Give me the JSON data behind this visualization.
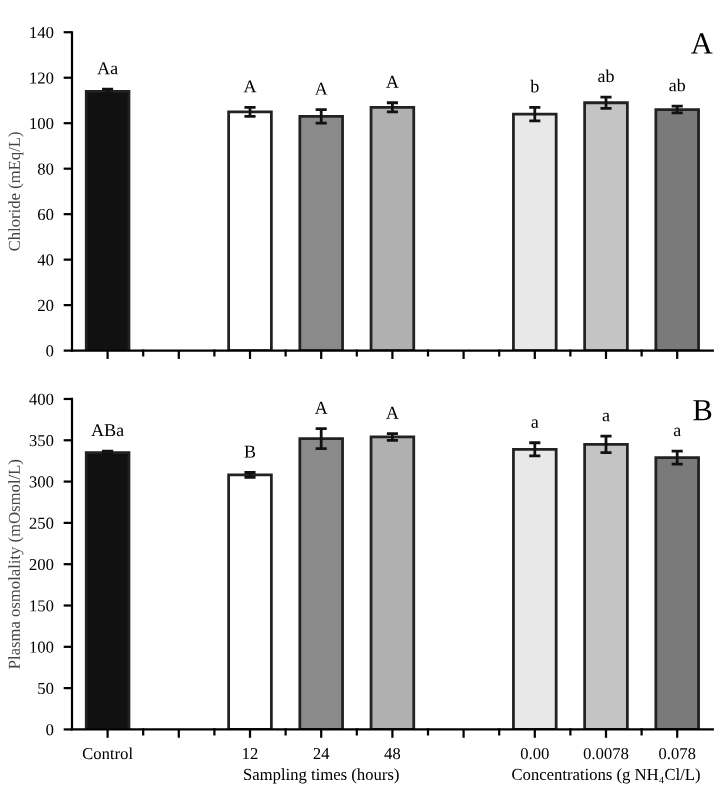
{
  "chart_data": [
    {
      "type": "bar",
      "ylabel": "Chloride (mEq/L)",
      "categories": [
        null,
        null,
        null,
        null,
        null,
        null,
        null,
        null,
        null
      ],
      "values": [
        114,
        null,
        105,
        103,
        107,
        null,
        104,
        109,
        106
      ],
      "errors": [
        1,
        null,
        2,
        3,
        2,
        null,
        3,
        2.5,
        1.5
      ],
      "value_labels": [
        "Aa",
        null,
        "A",
        "A",
        "A",
        null,
        "b",
        "ab",
        "ab"
      ],
      "colors": [
        "#111111",
        "#ffffff",
        "#ffffff",
        "#8a8a8a",
        "#b0b0b0",
        "#ffffff",
        "#e8e8e8",
        "#c4c4c4",
        "#7a7a7a"
      ],
      "ylim": [
        0,
        140
      ],
      "yticks": [
        0,
        20,
        40,
        60,
        80,
        100,
        120,
        140
      ],
      "tick_labels": "y",
      "grid": false,
      "legend": false,
      "annotations": [
        "A"
      ]
    },
    {
      "type": "bar",
      "ylabel": "Plasma osmolality (mOsmol/L)",
      "categories": [
        "Control",
        null,
        "12",
        "24",
        "48",
        null,
        "0.00",
        "0.0078",
        "0.078"
      ],
      "values": [
        335,
        null,
        308,
        352,
        354,
        null,
        339,
        345,
        329
      ],
      "errors": [
        2,
        null,
        3,
        12,
        4,
        null,
        8,
        10,
        8
      ],
      "value_labels": [
        "ABa",
        null,
        "B",
        "A",
        "A",
        null,
        "a",
        "a",
        "a"
      ],
      "colors": [
        "#111111",
        "#ffffff",
        "#ffffff",
        "#8a8a8a",
        "#b0b0b0",
        "#ffffff",
        "#e8e8e8",
        "#c4c4c4",
        "#7a7a7a"
      ],
      "ylim": [
        0,
        400
      ],
      "yticks": [
        0,
        50,
        100,
        150,
        200,
        250,
        300,
        350,
        400
      ],
      "grid": false,
      "legend": false,
      "annotations": [
        "B",
        "Sampling times (hours)",
        "Concentrations (g NH₄Cl/L)"
      ]
    }
  ]
}
